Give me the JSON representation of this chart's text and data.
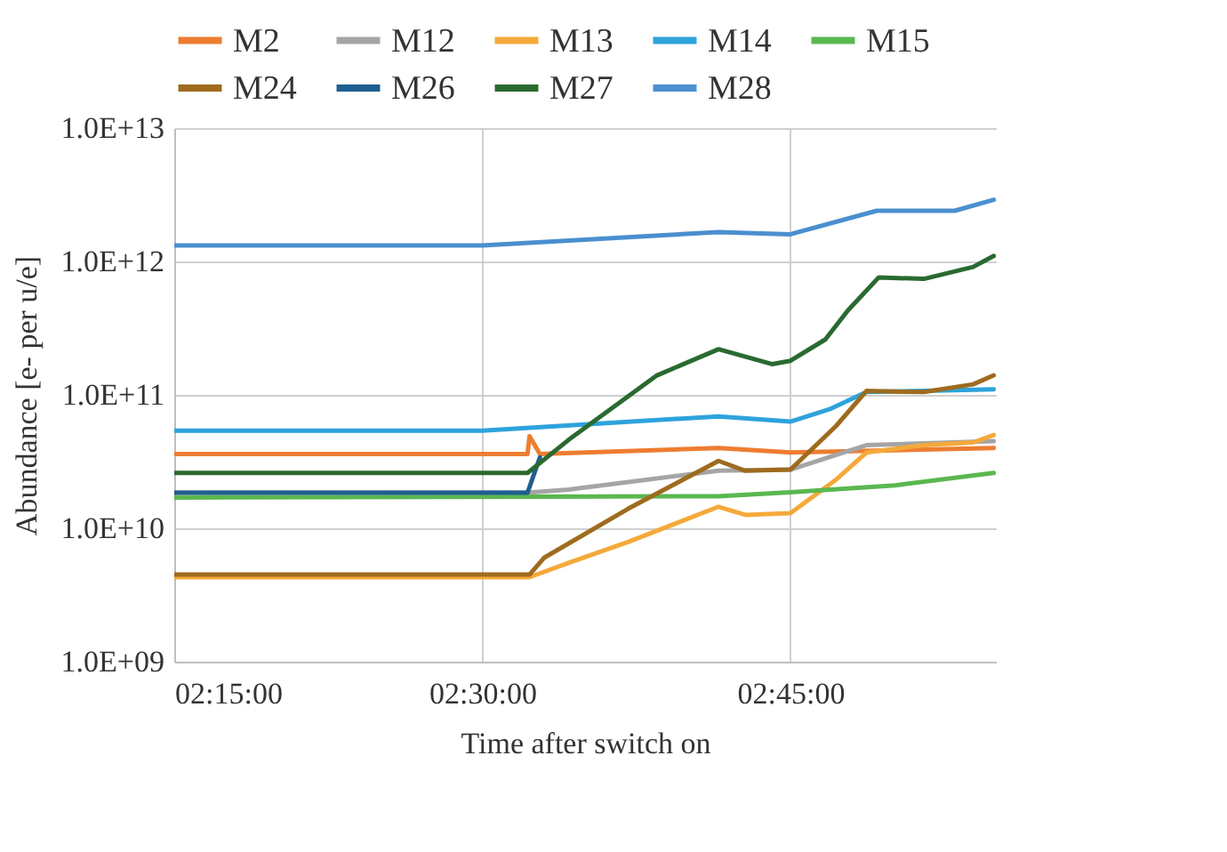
{
  "chart_data": {
    "type": "line",
    "xlabel": "Time after switch on",
    "ylabel": "Abundance [e- per u/e]",
    "log": "y",
    "grid": true,
    "legend": "top",
    "line_style": "solid",
    "marker": "none",
    "xlim": [
      2.25,
      2.9167
    ],
    "xticks": [
      {
        "value": 2.25,
        "label": "02:15:00"
      },
      {
        "value": 2.5,
        "label": "02:30:00"
      },
      {
        "value": 2.75,
        "label": "02:45:00"
      }
    ],
    "ylim": [
      1000000000.0,
      10000000000000.0
    ],
    "yticks": [
      {
        "value": 1000000000.0,
        "label": "1.0E+09"
      },
      {
        "value": 10000000000.0,
        "label": "1.0E+10"
      },
      {
        "value": 100000000000.0,
        "label": "1.0E+11"
      },
      {
        "value": 1000000000000.0,
        "label": "1.0E+12"
      },
      {
        "value": 10000000000000.0,
        "label": "1.0E+13"
      }
    ],
    "series": [
      {
        "name": "M2",
        "color": "#ed7d31",
        "x": [
          2.25,
          2.5367,
          2.5383,
          2.5467,
          2.6917,
          2.75,
          2.915
        ],
        "values": [
          36000000000.0,
          36000000000.0,
          49000000000.0,
          36000000000.0,
          40000000000.0,
          37000000000.0,
          40000000000.0
        ]
      },
      {
        "name": "M12",
        "color": "#a5a5a5",
        "x": [
          2.25,
          2.5367,
          2.57,
          2.6917,
          2.75,
          2.8117,
          2.915
        ],
        "values": [
          18500000000.0,
          18500000000.0,
          19500000000.0,
          27000000000.0,
          27500000000.0,
          42000000000.0,
          45000000000.0
        ]
      },
      {
        "name": "M13",
        "color": "#f5a93a",
        "x": [
          2.25,
          2.5383,
          2.57,
          2.6183,
          2.6917,
          2.7133,
          2.75,
          2.7867,
          2.8117,
          2.8583,
          2.8983,
          2.915
        ],
        "values": [
          4300000000.0,
          4300000000.0,
          5500000000.0,
          7900000000.0,
          14500000000.0,
          12600000000.0,
          13000000000.0,
          23000000000.0,
          37000000000.0,
          42000000000.0,
          44000000000.0,
          50000000000.0
        ]
      },
      {
        "name": "M14",
        "color": "#2ea3dc",
        "x": [
          2.25,
          2.5,
          2.6917,
          2.75,
          2.7817,
          2.8117,
          2.915
        ],
        "values": [
          54000000000.0,
          54000000000.0,
          69000000000.0,
          63000000000.0,
          78000000000.0,
          105000000000.0,
          110000000000.0
        ]
      },
      {
        "name": "M15",
        "color": "#5bb750",
        "x": [
          2.25,
          2.6917,
          2.75,
          2.835,
          2.915
        ],
        "values": [
          17000000000.0,
          17400000000.0,
          18600000000.0,
          21000000000.0,
          26000000000.0
        ]
      },
      {
        "name": "M24",
        "color": "#9e6b1e",
        "x": [
          2.25,
          2.5383,
          2.55,
          2.6183,
          2.6917,
          2.7133,
          2.75,
          2.7633,
          2.7867,
          2.8117,
          2.8583,
          2.8983,
          2.915
        ],
        "values": [
          4500000000.0,
          4500000000.0,
          6000000000.0,
          14000000000.0,
          32000000000.0,
          27000000000.0,
          27500000000.0,
          36000000000.0,
          58000000000.0,
          107000000000.0,
          105000000000.0,
          120000000000.0,
          140000000000.0
        ]
      },
      {
        "name": "M26",
        "color": "#1f5f8f",
        "x": [
          2.25,
          2.5367,
          2.5467
        ],
        "values": [
          18500000000.0,
          18500000000.0,
          34000000000.0
        ]
      },
      {
        "name": "M27",
        "color": "#2a6a30",
        "x": [
          2.25,
          2.5367,
          2.57,
          2.6417,
          2.6917,
          2.735,
          2.75,
          2.7783,
          2.7967,
          2.8217,
          2.8583,
          2.8983,
          2.915
        ],
        "values": [
          26000000000.0,
          26000000000.0,
          46000000000.0,
          140000000000.0,
          220000000000.0,
          170000000000.0,
          180000000000.0,
          260000000000.0,
          430000000000.0,
          760000000000.0,
          740000000000.0,
          910000000000.0,
          1100000000000.0
        ]
      },
      {
        "name": "M28",
        "color": "#4a8fcf",
        "x": [
          2.25,
          2.5,
          2.6917,
          2.75,
          2.82,
          2.8833,
          2.915
        ],
        "values": [
          1320000000000.0,
          1320000000000.0,
          1660000000000.0,
          1600000000000.0,
          2400000000000.0,
          2400000000000.0,
          2900000000000.0
        ]
      }
    ]
  }
}
